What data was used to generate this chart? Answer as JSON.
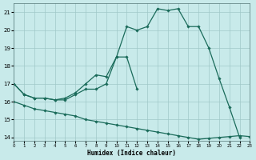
{
  "xlabel": "Humidex (Indice chaleur)",
  "xlim": [
    0,
    23
  ],
  "ylim": [
    13.8,
    21.5
  ],
  "xticks": [
    0,
    1,
    2,
    3,
    4,
    5,
    6,
    7,
    8,
    9,
    10,
    11,
    12,
    13,
    14,
    15,
    16,
    17,
    18,
    19,
    20,
    21,
    22,
    23
  ],
  "yticks": [
    14,
    15,
    16,
    17,
    18,
    19,
    20,
    21
  ],
  "background_color": "#c8eaea",
  "grid_color": "#a0c8c8",
  "line_color": "#1a6b5a",
  "line1_x": [
    0,
    1,
    2,
    3,
    4,
    5,
    6,
    7,
    8,
    9,
    10,
    11,
    12,
    13,
    14,
    15,
    16,
    17,
    18,
    19,
    20,
    21,
    22
  ],
  "line1_y": [
    17.0,
    16.4,
    16.2,
    16.2,
    16.1,
    16.1,
    16.4,
    16.7,
    16.7,
    17.0,
    18.5,
    20.2,
    20.0,
    20.2,
    21.2,
    21.1,
    21.2,
    20.2,
    20.2,
    19.0,
    17.3,
    15.7,
    14.0
  ],
  "line2_x": [
    0,
    1,
    2,
    3,
    4,
    5,
    6,
    7,
    8,
    9,
    10,
    11,
    12
  ],
  "line2_y": [
    17.0,
    16.4,
    16.2,
    16.2,
    16.1,
    16.2,
    16.5,
    17.0,
    17.5,
    17.4,
    18.5,
    18.5,
    16.7
  ],
  "line3_x": [
    0,
    1,
    2,
    3,
    4,
    5,
    6,
    7,
    8,
    9,
    10,
    11,
    12,
    13,
    14,
    15,
    16,
    17,
    18,
    19,
    20,
    21,
    22,
    23
  ],
  "line3_y": [
    16.0,
    15.8,
    15.6,
    15.5,
    15.4,
    15.3,
    15.2,
    15.0,
    14.9,
    14.8,
    14.7,
    14.6,
    14.5,
    14.4,
    14.3,
    14.2,
    14.1,
    14.0,
    13.9,
    13.95,
    14.0,
    14.05,
    14.1,
    14.05
  ]
}
